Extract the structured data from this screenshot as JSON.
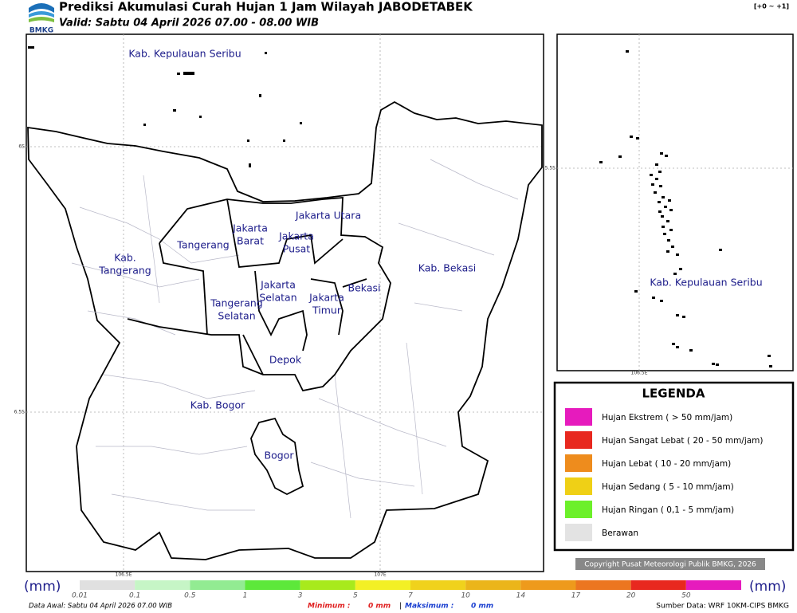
{
  "header": {
    "logo": "BMKG",
    "title": "Prediksi Akumulasi Curah Hujan 1 Jam Wilayah JABODETABEK",
    "valid": "Valid: Sabtu 04 April 2026 07.00 - 08.00 WIB",
    "period": "[+0 ~ +1]"
  },
  "main_map": {
    "regions": [
      {
        "label": [
          "Kab. Kepulauan Seribu"
        ]
      },
      {
        "label": [
          "Jakarta Utara"
        ]
      },
      {
        "label": [
          "Jakarta",
          "Barat"
        ]
      },
      {
        "label": [
          "Jakarta",
          "Pusat"
        ]
      },
      {
        "label": [
          "Tangerang"
        ]
      },
      {
        "label": [
          "Kab.",
          "Tangerang"
        ]
      },
      {
        "label": [
          "Jakarta",
          "Selatan"
        ]
      },
      {
        "label": [
          "Jakarta",
          "Timur"
        ]
      },
      {
        "label": [
          "Bekasi"
        ]
      },
      {
        "label": [
          "Kab. Bekasi"
        ]
      },
      {
        "label": [
          "Tangerang",
          "Selatan"
        ]
      },
      {
        "label": [
          "Depok"
        ]
      },
      {
        "label": [
          "Kab. Bogor"
        ]
      },
      {
        "label": [
          "Bogor"
        ]
      }
    ],
    "lat_labels": [
      "6S",
      "6.5S"
    ],
    "lon_labels": [
      "106.5E",
      "107E"
    ]
  },
  "inset_map": {
    "region": "Kab. Kepulauan Seribu",
    "lat_label": "5.5S",
    "lon_label": "106.5E"
  },
  "legend": {
    "title": "LEGENDA",
    "items": [
      {
        "label": "Hujan Ekstrem ( > 50 mm/jam)",
        "color": "#e61bbd"
      },
      {
        "label": "Hujan Sangat Lebat ( 20 - 50 mm/jam)",
        "color": "#e8281f"
      },
      {
        "label": "Hujan Lebat ( 10 - 20 mm/jam)",
        "color": "#ee8c1d"
      },
      {
        "label": "Hujan Sedang ( 5 - 10 mm/jam)",
        "color": "#efd016"
      },
      {
        "label": "Hujan Ringan ( 0,1 - 5 mm/jam)",
        "color": "#6cf02a"
      },
      {
        "label": "Berawan",
        "color": "#e3e3e3"
      }
    ]
  },
  "copyright": "Copyright Pusat Meteorologi Publik BMKG, 2026",
  "colorbar": {
    "unit_left": "(mm)",
    "unit_right": "(mm)",
    "ticks": [
      "0.01",
      "0.1",
      "0.5",
      "1",
      "3",
      "5",
      "7",
      "10",
      "14",
      "17",
      "20",
      "50"
    ],
    "colors": [
      "#e0e0e0",
      "#c6f5c6",
      "#92eb92",
      "#5de83a",
      "#a8ea1c",
      "#f3f025",
      "#f0d21c",
      "#ebb51a",
      "#ee9a1c",
      "#ec7620",
      "#e8281f",
      "#e61bbd"
    ]
  },
  "footer": {
    "data_awal": "Data Awal: Sabtu 04 April 2026 07.00 WIB",
    "minimum_label": "Minimum :",
    "minimum_value": "0 mm",
    "separator": "|",
    "maximum_label": "Maksimum :",
    "maximum_value": "0 mm",
    "source": "Sumber Data: WRF 10KM-CIPS BMKG"
  }
}
